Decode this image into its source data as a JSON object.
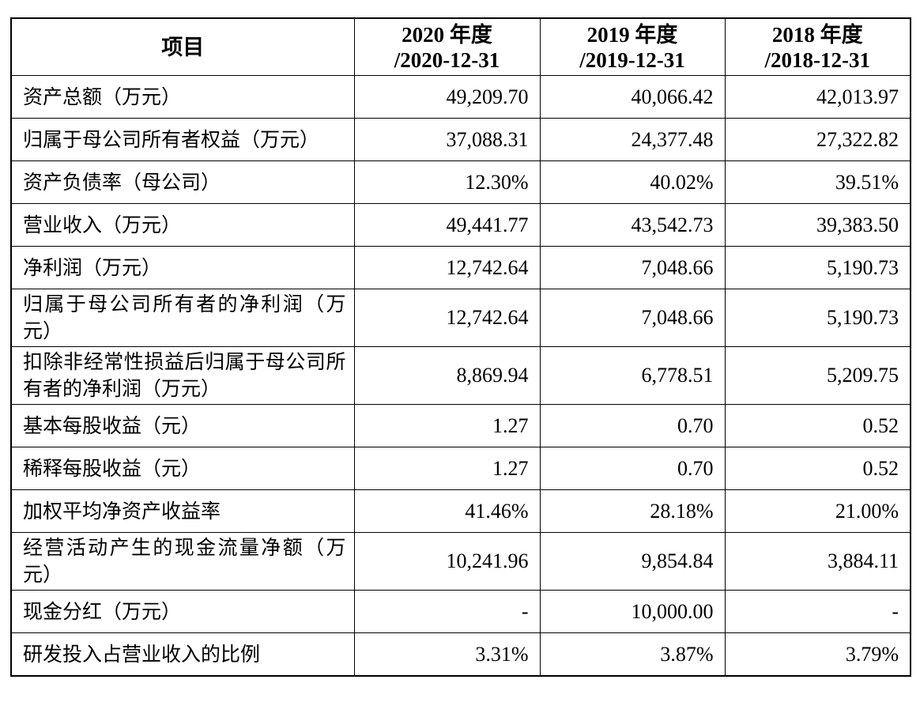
{
  "table": {
    "header": {
      "item": "项目",
      "col1_year": "2020 年度",
      "col1_date": "/2020-12-31",
      "col2_year": "2019 年度",
      "col2_date": "/2019-12-31",
      "col3_year": "2018 年度",
      "col3_date": "/2018-12-31"
    },
    "rows": [
      {
        "label": "资产总额（万元）",
        "v2020": "49,209.70",
        "v2019": "40,066.42",
        "v2018": "42,013.97"
      },
      {
        "label": "归属于母公司所有者权益（万元）",
        "v2020": "37,088.31",
        "v2019": "24,377.48",
        "v2018": "27,322.82"
      },
      {
        "label": "资产负债率（母公司）",
        "v2020": "12.30%",
        "v2019": "40.02%",
        "v2018": "39.51%"
      },
      {
        "label": "营业收入（万元）",
        "v2020": "49,441.77",
        "v2019": "43,542.73",
        "v2018": "39,383.50"
      },
      {
        "label": "净利润（万元）",
        "v2020": "12,742.64",
        "v2019": "7,048.66",
        "v2018": "5,190.73"
      },
      {
        "label": "归属于母公司所有者的净利润（万元）",
        "v2020": "12,742.64",
        "v2019": "7,048.66",
        "v2018": "5,190.73"
      },
      {
        "label": "扣除非经常性损益后归属于母公司所有者的净利润（万元）",
        "v2020": "8,869.94",
        "v2019": "6,778.51",
        "v2018": "5,209.75"
      },
      {
        "label": "基本每股收益（元）",
        "v2020": "1.27",
        "v2019": "0.70",
        "v2018": "0.52"
      },
      {
        "label": "稀释每股收益（元）",
        "v2020": "1.27",
        "v2019": "0.70",
        "v2018": "0.52"
      },
      {
        "label": "加权平均净资产收益率",
        "v2020": "41.46%",
        "v2019": "28.18%",
        "v2018": "21.00%"
      },
      {
        "label": "经营活动产生的现金流量净额（万元）",
        "v2020": "10,241.96",
        "v2019": "9,854.84",
        "v2018": "3,884.11"
      },
      {
        "label": "现金分红（万元）",
        "v2020": "-",
        "v2019": "10,000.00",
        "v2018": "-"
      },
      {
        "label": "研发投入占营业收入的比例",
        "v2020": "3.31%",
        "v2019": "3.87%",
        "v2018": "3.79%"
      }
    ]
  }
}
